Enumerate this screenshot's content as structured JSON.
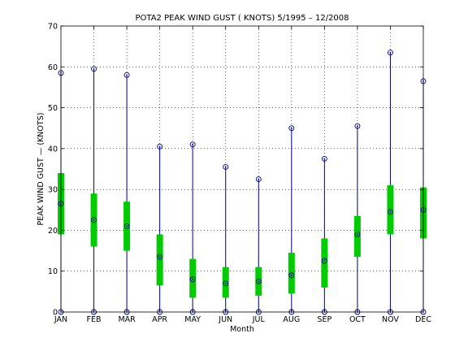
{
  "chart_data": {
    "type": "boxplot",
    "title": "POTA2  PEAK WIND GUST ( KNOTS) 5/1995 – 12/2008",
    "xlabel": "Month",
    "ylabel": "PEAK WIND GUST — (KNOTS)",
    "categories": [
      "JAN",
      "FEB",
      "MAR",
      "APR",
      "MAY",
      "JUN",
      "JUL",
      "AUG",
      "SEP",
      "OCT",
      "NOV",
      "DEC"
    ],
    "ylim": [
      0,
      70
    ],
    "yticks": [
      0,
      10,
      20,
      30,
      40,
      50,
      60,
      70
    ],
    "grid": true,
    "min": [
      0,
      0,
      0,
      0,
      0,
      0,
      0,
      0,
      0,
      0,
      0,
      0
    ],
    "q1": [
      19,
      16,
      15,
      6.5,
      3.5,
      3.5,
      4,
      4.5,
      6,
      13.5,
      19,
      18
    ],
    "mean": [
      26.5,
      22.5,
      21,
      13.5,
      8,
      7,
      7.5,
      9,
      12.5,
      19,
      24.5,
      25
    ],
    "q3": [
      34,
      29,
      27,
      19,
      13,
      11,
      11,
      14.5,
      18,
      23.5,
      31,
      30.5
    ],
    "max": [
      58.5,
      59.5,
      58,
      40.5,
      41,
      35.5,
      32.5,
      45,
      37.5,
      45.5,
      63.5,
      56.5
    ]
  },
  "colors": {
    "whisker": "#00008f",
    "box": "#00cc00",
    "marker": "#00008f"
  }
}
